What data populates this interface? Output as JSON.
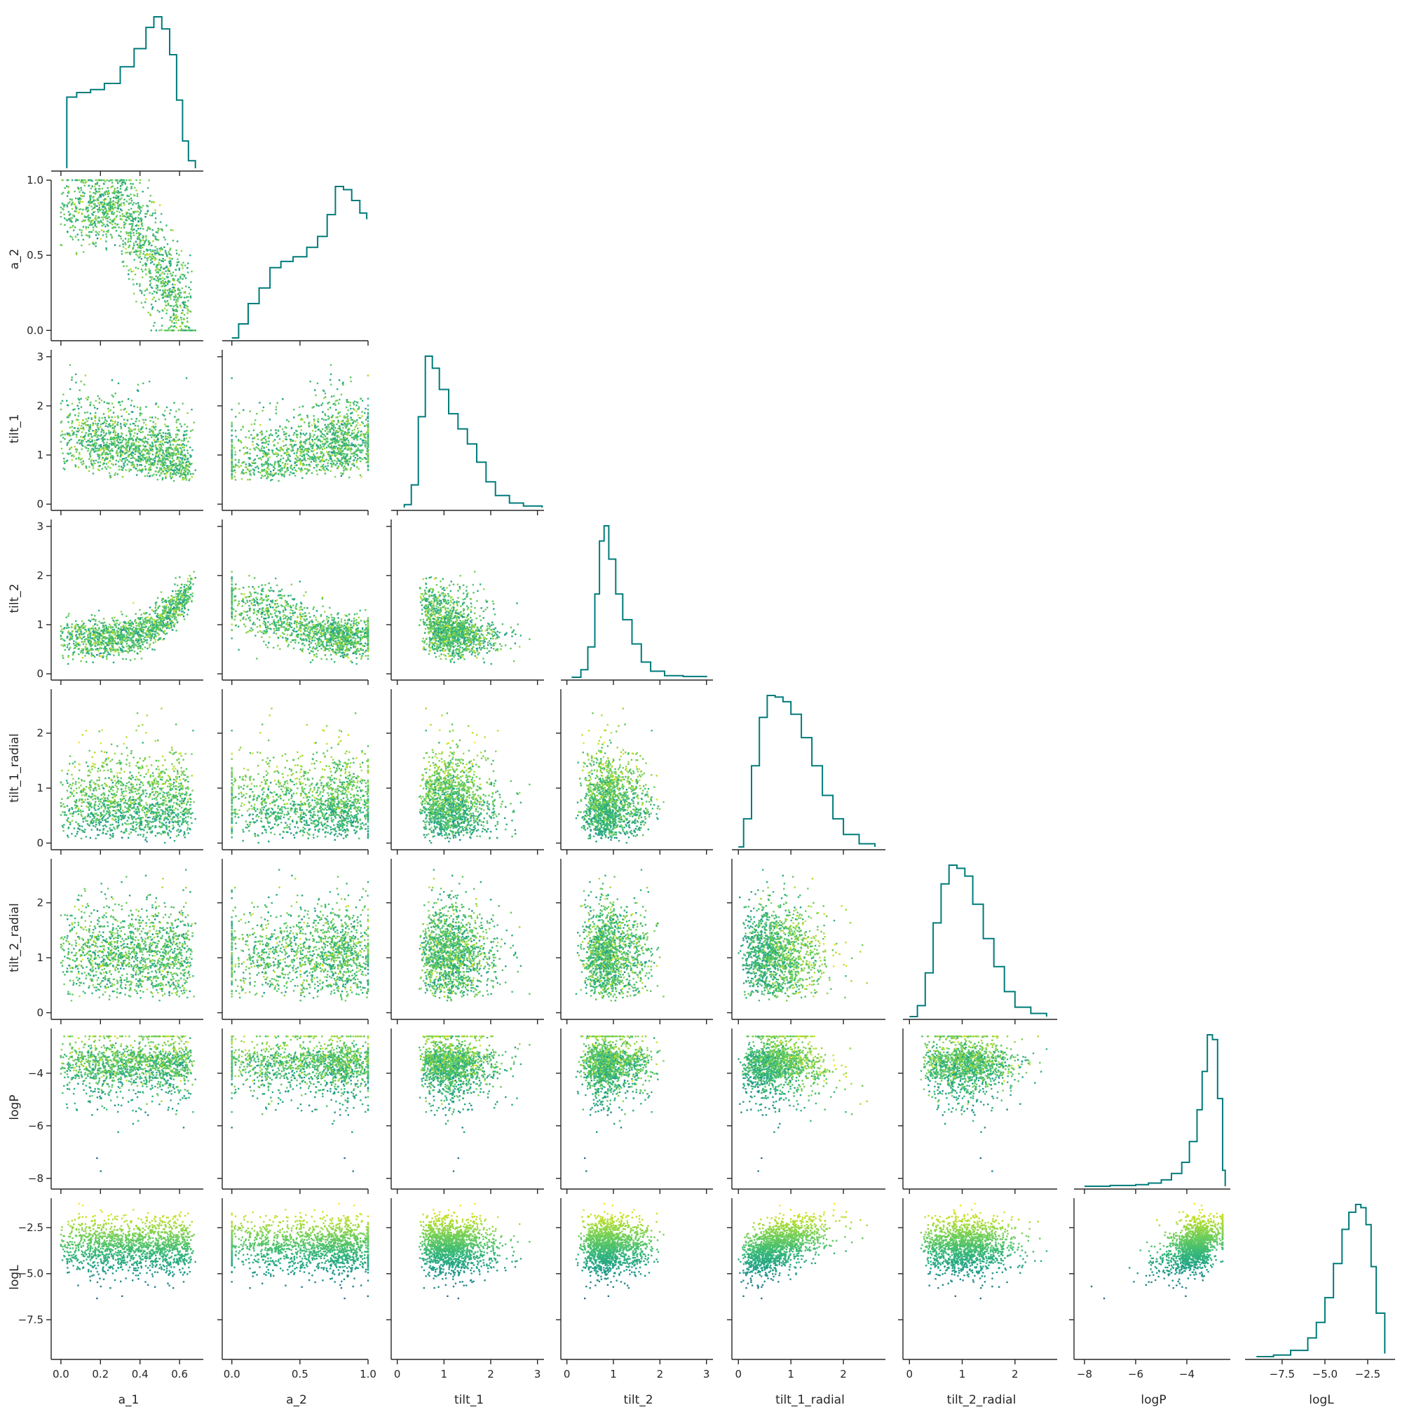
{
  "chart_data": {
    "type": "scatter",
    "kind": "corner-pairplot",
    "diagonal": "step-histogram",
    "histogram_color": "#007b7b",
    "colormap": "viridis",
    "color_by": "logL",
    "variables": [
      {
        "name": "a_1",
        "label": "a_1",
        "range": [
          -0.035,
          0.72
        ],
        "ticks": [
          0.0,
          0.2,
          0.4,
          0.6
        ],
        "tick_labels": [
          "0.0",
          "0.2",
          "0.4",
          "0.6"
        ],
        "hist": {
          "x": [
            0.03,
            0.08,
            0.15,
            0.22,
            0.3,
            0.37,
            0.43,
            0.47,
            0.51,
            0.55,
            0.585,
            0.615,
            0.645,
            0.68
          ],
          "y": [
            0.47,
            0.5,
            0.52,
            0.56,
            0.67,
            0.79,
            0.93,
            1.0,
            0.92,
            0.75,
            0.45,
            0.18,
            0.05,
            0.0
          ]
        }
      },
      {
        "name": "a_2",
        "label": "a_2",
        "range": [
          -0.05,
          1.0
        ],
        "ticks": [
          0.0,
          0.5,
          1.0
        ],
        "tick_labels": [
          "0.0",
          "0.5",
          "1.0"
        ],
        "hist": {
          "x": [
            0.0,
            0.05,
            0.12,
            0.2,
            0.28,
            0.36,
            0.45,
            0.55,
            0.63,
            0.7,
            0.76,
            0.82,
            0.88,
            0.94,
            0.99
          ],
          "y": [
            0.0,
            0.09,
            0.22,
            0.32,
            0.45,
            0.49,
            0.52,
            0.58,
            0.65,
            0.79,
            0.97,
            0.95,
            0.88,
            0.8,
            0.76
          ]
        }
      },
      {
        "name": "tilt_1",
        "label": "tilt_1",
        "range": [
          -0.07,
          3.14
        ],
        "ticks": [
          0,
          1,
          2,
          3
        ],
        "tick_labels": [
          "0",
          "1",
          "2",
          "3"
        ],
        "hist": {
          "x": [
            0.15,
            0.3,
            0.45,
            0.6,
            0.75,
            0.9,
            1.1,
            1.3,
            1.5,
            1.7,
            1.9,
            2.1,
            2.4,
            2.7,
            3.1
          ],
          "y": [
            0.02,
            0.15,
            0.6,
            1.0,
            0.92,
            0.78,
            0.62,
            0.52,
            0.42,
            0.3,
            0.17,
            0.08,
            0.03,
            0.01,
            0.0
          ]
        }
      },
      {
        "name": "tilt_2",
        "label": "tilt_2",
        "range": [
          -0.07,
          3.14
        ],
        "ticks": [
          0,
          1,
          2,
          3
        ],
        "tick_labels": [
          "0",
          "1",
          "2",
          "3"
        ],
        "hist": {
          "x": [
            0.1,
            0.3,
            0.45,
            0.6,
            0.7,
            0.8,
            0.9,
            1.05,
            1.2,
            1.4,
            1.6,
            1.8,
            2.1,
            2.5,
            3.0
          ],
          "y": [
            0.0,
            0.05,
            0.2,
            0.55,
            0.9,
            1.0,
            0.78,
            0.55,
            0.38,
            0.22,
            0.1,
            0.04,
            0.01,
            0.005,
            0.0
          ]
        }
      },
      {
        "name": "tilt_1_radial",
        "label": "tilt_1_radial",
        "range": [
          -0.07,
          2.8
        ],
        "ticks": [
          0,
          1,
          2
        ],
        "tick_labels": [
          "0",
          "1",
          "2"
        ],
        "hist": {
          "x": [
            0.0,
            0.1,
            0.25,
            0.4,
            0.55,
            0.7,
            0.85,
            1.0,
            1.2,
            1.4,
            1.6,
            1.8,
            2.0,
            2.3,
            2.6
          ],
          "y": [
            0.0,
            0.18,
            0.52,
            0.83,
            0.97,
            0.96,
            0.93,
            0.85,
            0.7,
            0.52,
            0.33,
            0.18,
            0.08,
            0.02,
            0.0
          ]
        }
      },
      {
        "name": "tilt_2_radial",
        "label": "tilt_2_radial",
        "range": [
          -0.07,
          2.8
        ],
        "ticks": [
          0,
          1,
          2
        ],
        "tick_labels": [
          "0",
          "1",
          "2"
        ],
        "hist": {
          "x": [
            0.0,
            0.15,
            0.3,
            0.45,
            0.6,
            0.75,
            0.9,
            1.05,
            1.2,
            1.4,
            1.6,
            1.8,
            2.0,
            2.3,
            2.6
          ],
          "y": [
            0.0,
            0.07,
            0.28,
            0.6,
            0.85,
            0.97,
            0.95,
            0.9,
            0.72,
            0.5,
            0.32,
            0.16,
            0.06,
            0.02,
            0.0
          ]
        }
      },
      {
        "name": "logP",
        "label": "logP",
        "range": [
          -8.3,
          -2.3
        ],
        "ticks": [
          -8,
          -6,
          -4
        ],
        "tick_labels": [
          "−8",
          "−6",
          "−4"
        ],
        "hist": {
          "x": [
            -8.0,
            -7.0,
            -6.0,
            -5.5,
            -5.0,
            -4.6,
            -4.2,
            -3.9,
            -3.6,
            -3.4,
            -3.2,
            -3.0,
            -2.8,
            -2.6,
            -2.5
          ],
          "y": [
            0.0,
            0.005,
            0.01,
            0.02,
            0.04,
            0.08,
            0.15,
            0.28,
            0.48,
            0.72,
            0.95,
            0.92,
            0.55,
            0.1,
            0.0
          ]
        }
      },
      {
        "name": "logL",
        "label": "logL",
        "range": [
          -9.5,
          -0.9
        ],
        "ticks": [
          -7.5,
          -5.0,
          -2.5
        ],
        "tick_labels": [
          "−7.5",
          "−5.0",
          "−2.5"
        ],
        "hist": {
          "x": [
            -9.0,
            -8.0,
            -7.0,
            -6.0,
            -5.5,
            -5.0,
            -4.5,
            -4.0,
            -3.6,
            -3.2,
            -2.9,
            -2.6,
            -2.3,
            -2.0,
            -1.5
          ],
          "y": [
            0.0,
            0.01,
            0.04,
            0.12,
            0.22,
            0.38,
            0.6,
            0.82,
            0.93,
            0.98,
            0.96,
            0.85,
            0.58,
            0.28,
            0.02
          ]
        }
      }
    ]
  }
}
